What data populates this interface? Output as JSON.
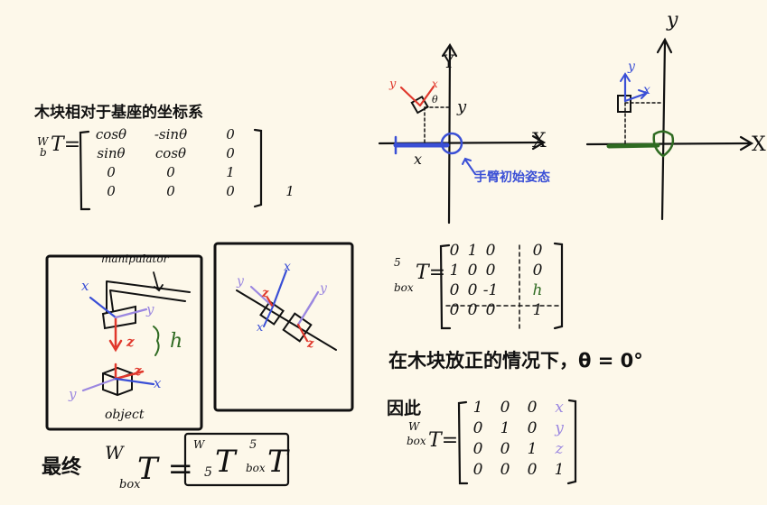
{
  "colors": {
    "ink": "#111111",
    "red": "#e0382c",
    "blue": "#3a4fd6",
    "violet": "#9b87e0",
    "green": "#2f6b22",
    "paper": "#fdf8ea"
  },
  "top_left": {
    "heading": "木块相对于基座的坐标系",
    "lhs_sup": "W",
    "lhs_sub": "b",
    "lhs_T": "T",
    "matrix": [
      [
        "cosθ",
        "-sinθ",
        "0"
      ],
      [
        "sinθ",
        "cosθ",
        "0"
      ],
      [
        "0",
        "0",
        "1"
      ],
      [
        "0",
        "0",
        "0",
        "1"
      ]
    ]
  },
  "top_axes_left": {
    "x_label": "X",
    "y_label": "Y",
    "y_dim": "y",
    "x_dim": "x",
    "theta": "θ",
    "frame_x": "x",
    "frame_y": "y",
    "note": "手臂初始姿态"
  },
  "top_axes_right": {
    "x_label": "X",
    "y_label": "y",
    "frame_x": "x",
    "frame_y": "y"
  },
  "panel_left": {
    "manipulator": "manipulator",
    "object": "object",
    "h": "h",
    "frame_top": {
      "x": "x",
      "y": "y",
      "z": "z"
    },
    "frame_bottom": {
      "x": "x",
      "y": "y",
      "z": "z"
    }
  },
  "panel_right": {
    "labels": {
      "x": "x",
      "y": "y",
      "z1": "z",
      "z2": "z",
      "y2": "y",
      "x2": "x"
    }
  },
  "matrix_5box": {
    "sup": "5",
    "sub": "box",
    "T": "T",
    "rows": [
      [
        "0",
        "1",
        "0",
        "0"
      ],
      [
        "1",
        "0",
        "0",
        "0"
      ],
      [
        "0",
        "0",
        "-1",
        "h"
      ],
      [
        "0",
        "0",
        "0",
        "1"
      ]
    ]
  },
  "sentence": "在木块放正的情况下，θ = 0°",
  "therefore": {
    "label": "因此",
    "sup": "W",
    "sub": "box",
    "T": "T",
    "rows": [
      [
        "1",
        "0",
        "0",
        "x"
      ],
      [
        "0",
        "1",
        "0",
        "y"
      ],
      [
        "0",
        "0",
        "1",
        "z"
      ],
      [
        "0",
        "0",
        "0",
        "1"
      ]
    ]
  },
  "final": {
    "label": "最终",
    "lhs_sup": "W",
    "lhs_sub": "box",
    "T": "T",
    "a_sup": "W",
    "a_sub": "5",
    "b_sup": "5",
    "b_sub": "box"
  }
}
